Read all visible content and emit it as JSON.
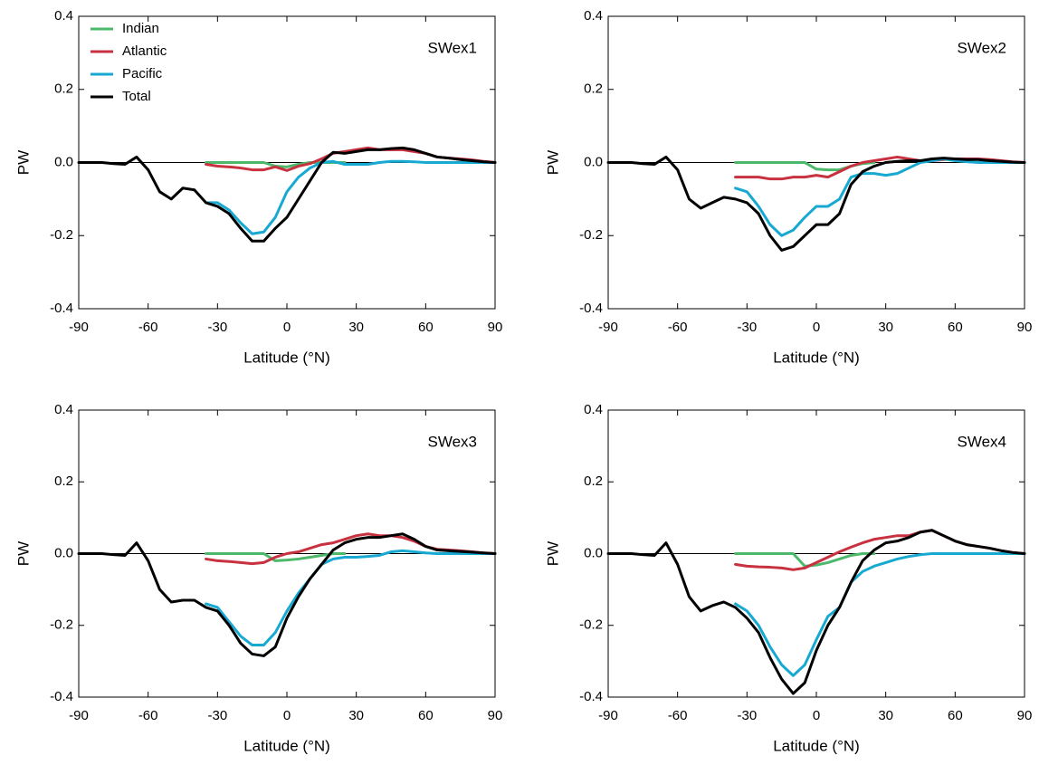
{
  "chart_data": [
    {
      "type": "line",
      "title": "SWex1",
      "xlabel": "Latitude (°N)",
      "ylabel": "PW",
      "x": [
        -90,
        -85,
        -80,
        -75,
        -70,
        -65,
        -60,
        -55,
        -50,
        -45,
        -40,
        -35,
        -30,
        -25,
        -20,
        -15,
        -10,
        -5,
        0,
        5,
        10,
        15,
        20,
        25,
        30,
        35,
        40,
        45,
        50,
        55,
        60,
        65,
        70,
        75,
        80,
        85,
        90
      ],
      "xlim": [
        -90,
        90
      ],
      "ylim": [
        -0.4,
        0.4
      ],
      "xticks": [
        -90,
        -60,
        -30,
        0,
        30,
        60,
        90
      ],
      "yticks": [
        -0.4,
        -0.2,
        {
          "value": 0,
          "label": "0.0"
        },
        0.2,
        0.4
      ],
      "legend": "upper left",
      "series": [
        {
          "name": "Indian",
          "color": "#4cb86a",
          "values": [
            null,
            null,
            null,
            null,
            null,
            null,
            null,
            null,
            null,
            null,
            null,
            0,
            0,
            0,
            0,
            0,
            0,
            -0.01,
            -0.012,
            -0.005,
            0,
            0,
            0,
            0,
            null,
            null,
            null,
            null,
            null,
            null,
            null,
            null,
            null,
            null,
            null,
            null,
            null
          ]
        },
        {
          "name": "Atlantic",
          "color": "#c8313f",
          "values": [
            null,
            null,
            null,
            null,
            null,
            null,
            null,
            null,
            null,
            null,
            null,
            -0.005,
            -0.01,
            -0.012,
            -0.015,
            -0.02,
            -0.02,
            -0.012,
            -0.022,
            -0.01,
            -0.003,
            0.01,
            0.025,
            0.03,
            0.035,
            0.04,
            0.035,
            0.035,
            0.035,
            0.03,
            0.025,
            0.015,
            0.012,
            0.01,
            0.007,
            0.003,
            0
          ]
        },
        {
          "name": "Pacific",
          "color": "#17a9d1",
          "values": [
            null,
            null,
            null,
            null,
            null,
            null,
            null,
            null,
            null,
            null,
            null,
            -0.11,
            -0.11,
            -0.13,
            -0.165,
            -0.195,
            -0.19,
            -0.15,
            -0.08,
            -0.04,
            -0.015,
            0,
            0.003,
            -0.005,
            -0.005,
            -0.005,
            0,
            0.003,
            0.003,
            0.002,
            0,
            0,
            0,
            0,
            0,
            0,
            0
          ]
        },
        {
          "name": "Total",
          "color": "#000000",
          "values": [
            0,
            0,
            0,
            -0.003,
            -0.005,
            0.015,
            -0.02,
            -0.08,
            -0.1,
            -0.07,
            -0.075,
            -0.11,
            -0.12,
            -0.14,
            -0.18,
            -0.215,
            -0.215,
            -0.18,
            -0.15,
            -0.1,
            -0.05,
            0,
            0.028,
            0.025,
            0.03,
            0.035,
            0.035,
            0.038,
            0.04,
            0.035,
            0.025,
            0.015,
            0.012,
            0.008,
            0.005,
            0.002,
            0
          ]
        }
      ]
    },
    {
      "type": "line",
      "title": "SWex2",
      "xlabel": "Latitude (°N)",
      "ylabel": "PW",
      "x": [
        -90,
        -85,
        -80,
        -75,
        -70,
        -65,
        -60,
        -55,
        -50,
        -45,
        -40,
        -35,
        -30,
        -25,
        -20,
        -15,
        -10,
        -5,
        0,
        5,
        10,
        15,
        20,
        25,
        30,
        35,
        40,
        45,
        50,
        55,
        60,
        65,
        70,
        75,
        80,
        85,
        90
      ],
      "xlim": [
        -90,
        90
      ],
      "ylim": [
        -0.4,
        0.4
      ],
      "xticks": [
        -90,
        -60,
        -30,
        0,
        30,
        60,
        90
      ],
      "yticks": [
        -0.4,
        -0.2,
        {
          "value": 0,
          "label": "0.0"
        },
        0.2,
        0.4
      ],
      "series": [
        {
          "name": "Indian",
          "color": "#4cb86a",
          "values": [
            null,
            null,
            null,
            null,
            null,
            null,
            null,
            null,
            null,
            null,
            null,
            0,
            0,
            0,
            0,
            0,
            0,
            0,
            -0.018,
            -0.02,
            -0.02,
            -0.01,
            -0.003,
            0,
            null,
            null,
            null,
            null,
            null,
            null,
            null,
            null,
            null,
            null,
            null,
            null,
            null
          ]
        },
        {
          "name": "Atlantic",
          "color": "#c8313f",
          "values": [
            null,
            null,
            null,
            null,
            null,
            null,
            null,
            null,
            null,
            null,
            null,
            -0.04,
            -0.04,
            -0.04,
            -0.045,
            -0.045,
            -0.04,
            -0.04,
            -0.035,
            -0.04,
            -0.025,
            -0.01,
            0,
            0.005,
            0.01,
            0.015,
            0.01,
            0.005,
            0.005,
            0.008,
            0.01,
            0.01,
            0.01,
            0.008,
            0.005,
            0.002,
            0
          ]
        },
        {
          "name": "Pacific",
          "color": "#17a9d1",
          "values": [
            null,
            null,
            null,
            null,
            null,
            null,
            null,
            null,
            null,
            null,
            null,
            -0.07,
            -0.08,
            -0.12,
            -0.17,
            -0.2,
            -0.185,
            -0.15,
            -0.12,
            -0.12,
            -0.1,
            -0.04,
            -0.03,
            -0.03,
            -0.035,
            -0.03,
            -0.015,
            0,
            0.005,
            0.01,
            0.005,
            0.002,
            0,
            0,
            0,
            0,
            0
          ]
        },
        {
          "name": "Total",
          "color": "#000000",
          "values": [
            0,
            0,
            0,
            -0.003,
            -0.005,
            0.015,
            -0.02,
            -0.1,
            -0.125,
            -0.11,
            -0.095,
            -0.1,
            -0.11,
            -0.14,
            -0.2,
            -0.24,
            -0.23,
            -0.2,
            -0.17,
            -0.17,
            -0.14,
            -0.06,
            -0.025,
            -0.01,
            0,
            0.003,
            0.005,
            0.005,
            0.01,
            0.012,
            0.01,
            0.008,
            0.008,
            0.005,
            0.003,
            0.001,
            0
          ]
        }
      ]
    },
    {
      "type": "line",
      "title": "SWex3",
      "xlabel": "Latitude (°N)",
      "ylabel": "PW",
      "x": [
        -90,
        -85,
        -80,
        -75,
        -70,
        -65,
        -60,
        -55,
        -50,
        -45,
        -40,
        -35,
        -30,
        -25,
        -20,
        -15,
        -10,
        -5,
        0,
        5,
        10,
        15,
        20,
        25,
        30,
        35,
        40,
        45,
        50,
        55,
        60,
        65,
        70,
        75,
        80,
        85,
        90
      ],
      "xlim": [
        -90,
        90
      ],
      "ylim": [
        -0.4,
        0.4
      ],
      "xticks": [
        -90,
        -60,
        -30,
        0,
        30,
        60,
        90
      ],
      "yticks": [
        -0.4,
        -0.2,
        {
          "value": 0,
          "label": "0.0"
        },
        0.2,
        0.4
      ],
      "series": [
        {
          "name": "Indian",
          "color": "#4cb86a",
          "values": [
            null,
            null,
            null,
            null,
            null,
            null,
            null,
            null,
            null,
            null,
            null,
            0,
            0,
            0,
            0,
            0,
            0,
            -0.02,
            -0.018,
            -0.015,
            -0.01,
            -0.005,
            0,
            0,
            null,
            null,
            null,
            null,
            null,
            null,
            null,
            null,
            null,
            null,
            null,
            null,
            null
          ]
        },
        {
          "name": "Atlantic",
          "color": "#c8313f",
          "values": [
            null,
            null,
            null,
            null,
            null,
            null,
            null,
            null,
            null,
            null,
            null,
            -0.015,
            -0.02,
            -0.022,
            -0.025,
            -0.028,
            -0.025,
            -0.01,
            0,
            0.005,
            0.015,
            0.025,
            0.03,
            0.04,
            0.05,
            0.055,
            0.05,
            0.05,
            0.045,
            0.035,
            0.02,
            0.012,
            0.01,
            0.008,
            0.005,
            0.002,
            0
          ]
        },
        {
          "name": "Pacific",
          "color": "#17a9d1",
          "values": [
            null,
            null,
            null,
            null,
            null,
            null,
            null,
            null,
            null,
            null,
            null,
            -0.14,
            -0.15,
            -0.19,
            -0.23,
            -0.255,
            -0.255,
            -0.22,
            -0.16,
            -0.11,
            -0.07,
            -0.03,
            -0.015,
            -0.01,
            -0.01,
            -0.008,
            -0.005,
            0.005,
            0.008,
            0.005,
            0.002,
            0,
            0,
            0,
            0,
            0,
            0
          ]
        },
        {
          "name": "Total",
          "color": "#000000",
          "values": [
            0,
            0,
            0,
            -0.003,
            -0.005,
            0.03,
            -0.02,
            -0.1,
            -0.135,
            -0.13,
            -0.13,
            -0.15,
            -0.16,
            -0.2,
            -0.25,
            -0.28,
            -0.285,
            -0.26,
            -0.18,
            -0.12,
            -0.07,
            -0.03,
            0.01,
            0.03,
            0.04,
            0.045,
            0.045,
            0.05,
            0.055,
            0.04,
            0.02,
            0.01,
            0.008,
            0.006,
            0.004,
            0.002,
            0
          ]
        }
      ]
    },
    {
      "type": "line",
      "title": "SWex4",
      "xlabel": "Latitude (°N)",
      "ylabel": "PW",
      "x": [
        -90,
        -85,
        -80,
        -75,
        -70,
        -65,
        -60,
        -55,
        -50,
        -45,
        -40,
        -35,
        -30,
        -25,
        -20,
        -15,
        -10,
        -5,
        0,
        5,
        10,
        15,
        20,
        25,
        30,
        35,
        40,
        45,
        50,
        55,
        60,
        65,
        70,
        75,
        80,
        85,
        90
      ],
      "xlim": [
        -90,
        90
      ],
      "ylim": [
        -0.4,
        0.4
      ],
      "xticks": [
        -90,
        -60,
        -30,
        0,
        30,
        60,
        90
      ],
      "yticks": [
        -0.4,
        -0.2,
        {
          "value": 0,
          "label": "0.0"
        },
        0.2,
        0.4
      ],
      "series": [
        {
          "name": "Indian",
          "color": "#4cb86a",
          "values": [
            null,
            null,
            null,
            null,
            null,
            null,
            null,
            null,
            null,
            null,
            null,
            0,
            0,
            0,
            0,
            0,
            0,
            -0.035,
            -0.032,
            -0.025,
            -0.015,
            -0.005,
            0,
            0,
            null,
            null,
            null,
            null,
            null,
            null,
            null,
            null,
            null,
            null,
            null,
            null,
            null
          ]
        },
        {
          "name": "Atlantic",
          "color": "#c8313f",
          "values": [
            null,
            null,
            null,
            null,
            null,
            null,
            null,
            null,
            null,
            null,
            null,
            -0.03,
            -0.035,
            -0.037,
            -0.038,
            -0.04,
            -0.045,
            -0.04,
            -0.025,
            -0.01,
            0.005,
            0.018,
            0.03,
            0.04,
            0.045,
            0.05,
            0.05,
            0.06,
            0.065,
            0.05,
            0.035,
            0.025,
            0.02,
            0.015,
            0.008,
            0.003,
            0
          ]
        },
        {
          "name": "Pacific",
          "color": "#17a9d1",
          "values": [
            null,
            null,
            null,
            null,
            null,
            null,
            null,
            null,
            null,
            null,
            null,
            -0.14,
            -0.16,
            -0.2,
            -0.26,
            -0.31,
            -0.34,
            -0.31,
            -0.24,
            -0.175,
            -0.15,
            -0.08,
            -0.05,
            -0.035,
            -0.025,
            -0.015,
            -0.008,
            -0.003,
            0,
            0,
            0,
            0,
            0,
            0,
            0,
            0,
            0
          ]
        },
        {
          "name": "Total",
          "color": "#000000",
          "values": [
            0,
            0,
            0,
            -0.003,
            -0.005,
            0.03,
            -0.03,
            -0.12,
            -0.16,
            -0.145,
            -0.135,
            -0.15,
            -0.18,
            -0.22,
            -0.29,
            -0.35,
            -0.39,
            -0.36,
            -0.27,
            -0.2,
            -0.15,
            -0.08,
            -0.02,
            0.01,
            0.03,
            0.035,
            0.045,
            0.06,
            0.065,
            0.05,
            0.035,
            0.025,
            0.02,
            0.015,
            0.008,
            0.003,
            0
          ]
        }
      ]
    }
  ]
}
